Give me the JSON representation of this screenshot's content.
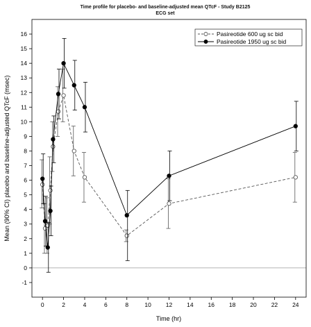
{
  "chart_data": {
    "type": "line",
    "title": "Time profile for placebo- and baseline-adjusted mean QTcF - Study B2125",
    "subtitle": "ECG set",
    "xlabel": "Time (hr)",
    "ylabel": "Mean (90% CI) placebo and baseline-adjusted QTcF (msec)",
    "xlim": [
      -1,
      25
    ],
    "ylim": [
      -2,
      17
    ],
    "xticks": [
      0,
      2,
      4,
      6,
      8,
      10,
      12,
      14,
      16,
      18,
      20,
      22,
      24
    ],
    "yticks": [
      -1,
      0,
      1,
      2,
      3,
      4,
      5,
      6,
      7,
      8,
      9,
      10,
      11,
      12,
      13,
      14,
      15,
      16
    ],
    "reference_line_y": 0,
    "legend_position": "top-right",
    "error_bars": "90% CI",
    "series": [
      {
        "name": "Pasireotide 600 ug sc bid",
        "marker": "open-circle",
        "line_style": "dashed",
        "color": "#555555",
        "x": [
          0,
          0.25,
          0.5,
          0.75,
          1,
          1.5,
          2,
          3,
          4,
          8,
          12,
          24
        ],
        "y": [
          5.7,
          2.7,
          2.9,
          5.3,
          8.3,
          10.7,
          11.8,
          8.0,
          6.2,
          2.2,
          4.4,
          6.2
        ],
        "lower": [
          4.1,
          1.0,
          1.0,
          3.0,
          6.6,
          9.0,
          10.0,
          6.3,
          4.5,
          1.8,
          2.7,
          4.5
        ],
        "upper": [
          7.4,
          4.4,
          4.8,
          7.6,
          10.0,
          12.4,
          13.6,
          9.7,
          7.9,
          2.6,
          6.1,
          7.9
        ]
      },
      {
        "name": "Pasireotide 1950 ug sc bid",
        "marker": "filled-circle",
        "line_style": "solid",
        "color": "#000000",
        "x": [
          0,
          0.25,
          0.5,
          0.75,
          1,
          1.5,
          2,
          3,
          4,
          8,
          12,
          24
        ],
        "y": [
          6.1,
          3.2,
          1.4,
          3.9,
          8.8,
          11.9,
          14.0,
          12.5,
          11.0,
          3.6,
          6.3,
          9.7
        ],
        "lower": [
          4.4,
          1.5,
          -0.3,
          2.2,
          7.2,
          10.2,
          12.3,
          10.8,
          9.3,
          0.5,
          4.6,
          8.0
        ],
        "upper": [
          7.8,
          4.9,
          3.1,
          5.6,
          10.4,
          13.6,
          15.7,
          14.2,
          12.7,
          5.3,
          8.0,
          11.4
        ]
      }
    ]
  }
}
